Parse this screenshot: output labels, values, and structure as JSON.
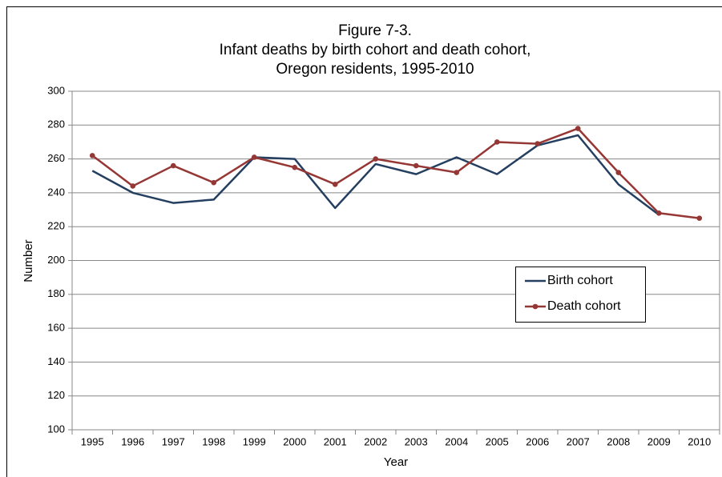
{
  "chart_data": {
    "type": "line",
    "title": [
      "Figure 7-3.",
      "Infant deaths by birth cohort and death cohort,",
      "Oregon residents, 1995-2010"
    ],
    "x_label": "Year",
    "y_label": "Number",
    "categories": [
      "1995",
      "1996",
      "1997",
      "1998",
      "1999",
      "2000",
      "2001",
      "2002",
      "2003",
      "2004",
      "2005",
      "2006",
      "2007",
      "2008",
      "2009",
      "2010"
    ],
    "series": [
      {
        "name": "Birth cohort",
        "color": "#243f60",
        "marker": false,
        "values": [
          253,
          240,
          234,
          236,
          261,
          260,
          231,
          257,
          251,
          261,
          251,
          268,
          274,
          245,
          227,
          null
        ]
      },
      {
        "name": "Death cohort",
        "color": "#953735",
        "marker": true,
        "values": [
          262,
          244,
          256,
          246,
          261,
          255,
          245,
          260,
          256,
          252,
          270,
          269,
          278,
          252,
          228,
          225
        ]
      }
    ],
    "ylim": [
      100,
      300
    ],
    "yticks": [
      100,
      120,
      140,
      160,
      180,
      200,
      220,
      240,
      260,
      280,
      300
    ],
    "grid": true
  }
}
